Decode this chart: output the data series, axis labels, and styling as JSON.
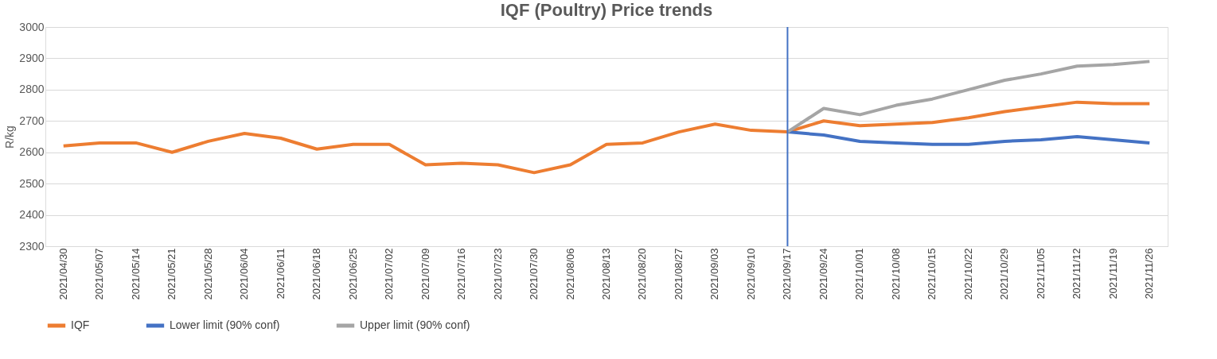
{
  "chart_data": {
    "type": "line",
    "title": "IQF (Poultry) Price trends",
    "ylabel": "R/kg",
    "categories": [
      "2021/04/30",
      "2021/05/07",
      "2021/05/14",
      "2021/05/21",
      "2021/05/28",
      "2021/06/04",
      "2021/06/11",
      "2021/06/18",
      "2021/06/25",
      "2021/07/02",
      "2021/07/09",
      "2021/07/16",
      "2021/07/23",
      "2021/07/30",
      "2021/08/06",
      "2021/08/13",
      "2021/08/20",
      "2021/08/27",
      "2021/09/03",
      "2021/09/10",
      "2021/09/17",
      "2021/09/24",
      "2021/10/01",
      "2021/10/08",
      "2021/10/15",
      "2021/10/22",
      "2021/10/29",
      "2021/11/05",
      "2021/11/12",
      "2021/11/19",
      "2021/11/26"
    ],
    "series": [
      {
        "name": "IQF",
        "color": "#ed7d31",
        "values": [
          2620,
          2630,
          2630,
          2600,
          2635,
          2660,
          2645,
          2610,
          2625,
          2625,
          2560,
          2565,
          2560,
          2535,
          2560,
          2625,
          2630,
          2665,
          2690,
          2670,
          2665,
          2700,
          2685,
          2690,
          2695,
          2710,
          2730,
          2745,
          2760,
          2755,
          2755
        ]
      },
      {
        "name": "Lower limit (90% conf)",
        "color": "#4472c4",
        "values": [
          null,
          null,
          null,
          null,
          null,
          null,
          null,
          null,
          null,
          null,
          null,
          null,
          null,
          null,
          null,
          null,
          null,
          null,
          null,
          null,
          2665,
          2655,
          2635,
          2630,
          2625,
          2625,
          2635,
          2640,
          2650,
          2640,
          2630
        ]
      },
      {
        "name": "Upper limit (90% conf)",
        "color": "#a5a5a5",
        "values": [
          null,
          null,
          null,
          null,
          null,
          null,
          null,
          null,
          null,
          null,
          null,
          null,
          null,
          null,
          null,
          null,
          null,
          null,
          null,
          null,
          2665,
          2740,
          2720,
          2750,
          2770,
          2800,
          2830,
          2850,
          2875,
          2880,
          2890
        ]
      }
    ],
    "ylim": [
      2300,
      3000
    ],
    "yticks": [
      2300,
      2400,
      2500,
      2600,
      2700,
      2800,
      2900,
      3000
    ],
    "ref_lines": [
      {
        "axis": "x",
        "value": "2021/09/17",
        "color": "#4472c4"
      }
    ],
    "grid": "y",
    "legend": "bottom",
    "marker": "none",
    "line_style": "solid"
  }
}
